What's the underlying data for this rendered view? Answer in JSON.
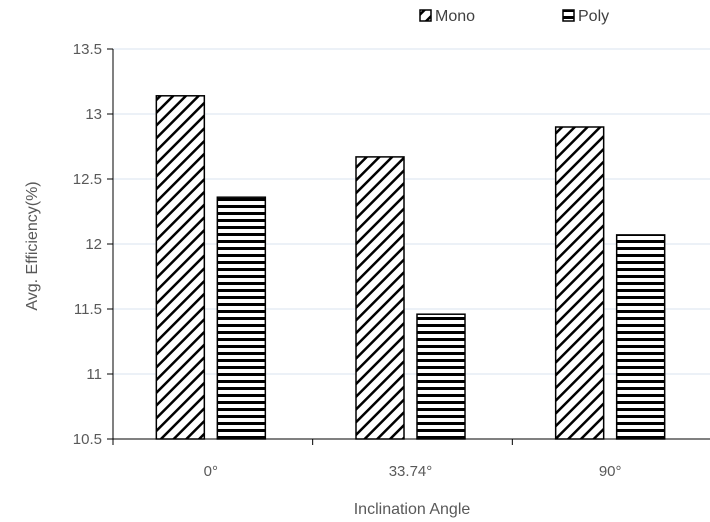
{
  "chart_data": {
    "type": "bar",
    "title": "",
    "xlabel": "Inclination Angle",
    "ylabel": "Avg. Efficiency(%)",
    "categories": [
      "0°",
      "33.74°",
      "90°"
    ],
    "series": [
      {
        "name": "Mono",
        "values": [
          13.14,
          12.67,
          12.9
        ],
        "pattern": "diagonal"
      },
      {
        "name": "Poly",
        "values": [
          12.36,
          11.46,
          12.07
        ],
        "pattern": "horizontal"
      }
    ],
    "ylim": [
      10.5,
      13.5
    ],
    "yticks": [
      "10.5",
      "11",
      "11.5",
      "12",
      "12.5",
      "13",
      "13.5"
    ],
    "grid": true,
    "legend_position": "top-right",
    "colors": {
      "bar_fill": "#ffffff",
      "bar_stroke": "#000000",
      "grid": "#d9e3ef",
      "axis": "#000000"
    }
  }
}
